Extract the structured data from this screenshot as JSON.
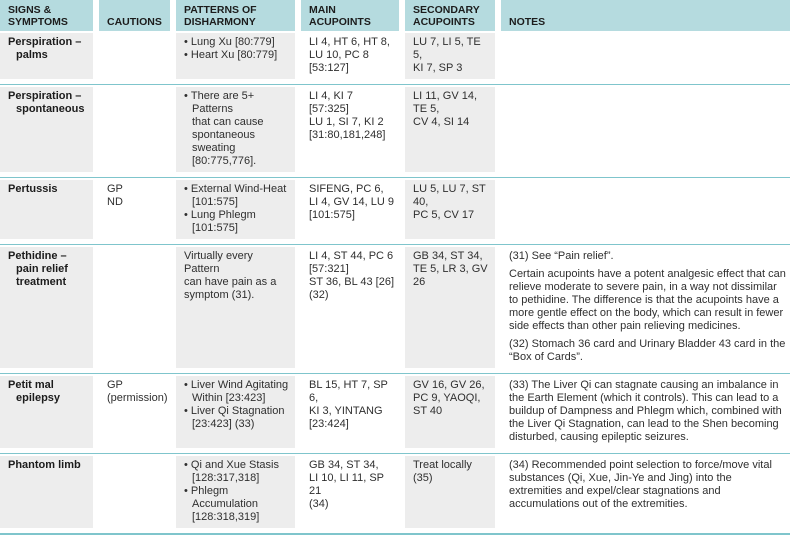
{
  "colors": {
    "header_bg": "#b5dbdf",
    "row_separator_line": "#7fc5cc",
    "shaded_cell_bg": "#ededed",
    "text": "#2f2f2f"
  },
  "table": {
    "headers": {
      "signs": "SIGNS &\nSYMPTOMS",
      "cautions": "CAUTIONS",
      "patterns": "PATTERNS OF\nDISHARMONY",
      "main": "MAIN\nACUPOINTS",
      "secondary": "SECONDARY\nACUPOINTS",
      "notes": "NOTES"
    },
    "rows": [
      {
        "signs": "Perspiration –\npalms",
        "cautions": "",
        "patterns": [
          "Lung Xu [80:779]",
          "Heart Xu [80:779]"
        ],
        "main": "LI 4, HT 6, HT 8,\nLU 10, PC 8\n[53:127]",
        "secondary": "LU 7, LI 5, TE 5,\nKI 7, SP 3",
        "notes": []
      },
      {
        "signs": "Perspiration –\nspontaneous",
        "cautions": "",
        "patterns": [
          "There are 5+ Patterns\nthat can cause\nspontaneous sweating\n[80:775,776]."
        ],
        "main": "LI 4, KI 7 [57:325]\nLU 1, SI 7, KI 2\n[31:80,181,248]",
        "secondary": "LI 11, GV 14, TE 5,\nCV 4, SI 14",
        "notes": []
      },
      {
        "signs": "Pertussis",
        "cautions": "GP\nND",
        "patterns": [
          "External Wind-Heat\n[101:575]",
          "Lung Phlegm [101:575]"
        ],
        "main": "SIFENG, PC 6,\nLI 4, GV 14, LU 9\n[101:575]",
        "secondary": "LU 5, LU 7, ST 40,\nPC 5, CV 17",
        "notes": []
      },
      {
        "signs": "Pethidine –\npain relief\ntreatment",
        "cautions": "",
        "patterns": [
          "Virtually every Pattern\ncan have pain as a\nsymptom (31)."
        ],
        "main": "LI 4, ST 44, PC 6\n[57:321]\nST 36, BL 43 [26]\n(32)",
        "secondary": "GB 34, ST 34,\nTE 5, LR 3, GV 26",
        "notes": [
          "(31) See “Pain relief”.",
          "Certain acupoints have a potent analgesic effect that can relieve moderate to severe pain, in a way not dissimilar to pethidine. The difference is that the acupoints have a more gentle effect on the body, which can result in fewer side effects than other pain relieving medicines.",
          "(32) Stomach 36 card and Urinary Bladder 43 card in the “Box of Cards”."
        ]
      },
      {
        "signs": "Petit mal\nepilepsy",
        "cautions": "GP\n(permission)",
        "patterns": [
          "Liver Wind Agitating\nWithin [23:423]",
          "Liver Qi Stagnation\n[23:423] (33)"
        ],
        "main": "BL 15, HT 7, SP 6,\nKI 3, YINTANG\n[23:424]",
        "secondary": "GV 16, GV 26,\nPC 9, YAOQI,\nST 40",
        "notes": [
          "(33) The Liver Qi can stagnate causing an imbalance in the Earth Element (which it controls). This can lead to a buildup of Dampness and Phlegm which, combined with the Liver Qi Stagnation, can lead to the Shen becoming disturbed, causing epileptic seizures."
        ]
      },
      {
        "signs": "Phantom limb",
        "cautions": "",
        "patterns": [
          "Qi and Xue Stasis\n[128:317,318]",
          "Phlegm Accumulation\n[128:318,319]"
        ],
        "main": "GB 34, ST 34,\nLI 10, LI 11, SP 21\n(34)",
        "secondary": "Treat locally (35)",
        "notes": [
          "(34) Recommended point selection to force/move vital substances (Qi, Xue, Jin-Ye and Jing) into the extremities and expel/clear stagnations and accumulations out of the extremities."
        ]
      }
    ]
  }
}
